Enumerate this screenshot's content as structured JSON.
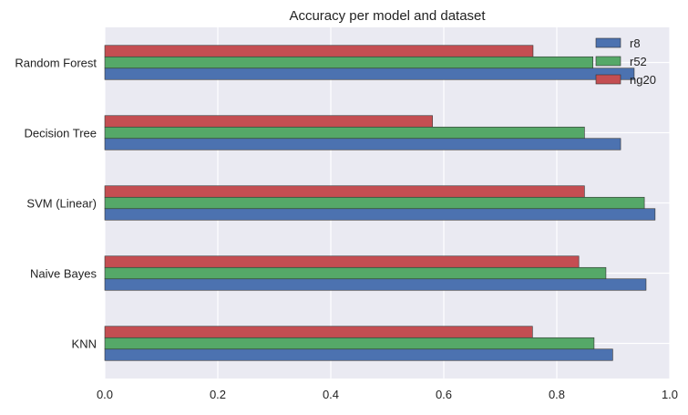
{
  "chart_data": {
    "type": "bar",
    "orientation": "horizontal",
    "title": "Accuracy per model and dataset",
    "xlabel": "",
    "ylabel": "",
    "xlim": [
      0.0,
      1.0
    ],
    "x_ticks": [
      "0.0",
      "0.2",
      "0.4",
      "0.6",
      "0.8",
      "1.0"
    ],
    "x_tick_values": [
      0.0,
      0.2,
      0.4,
      0.6,
      0.8,
      1.0
    ],
    "categories": [
      "KNN",
      "Naive Bayes",
      "SVM (Linear)",
      "Decision Tree",
      "Random Forest"
    ],
    "grid": true,
    "legend_position": "top-right",
    "series": [
      {
        "name": "r8",
        "color": "#4c72b0",
        "values": [
          0.899,
          0.958,
          0.974,
          0.913,
          0.937
        ]
      },
      {
        "name": "r52",
        "color": "#55a868",
        "values": [
          0.866,
          0.887,
          0.955,
          0.849,
          0.864
        ]
      },
      {
        "name": "ng20",
        "color": "#c44e52",
        "values": [
          0.757,
          0.839,
          0.849,
          0.58,
          0.758
        ]
      }
    ],
    "colors": {
      "plot_background": "#eaeaf2",
      "grid": "#ffffff",
      "bar_edge": "#333333"
    }
  }
}
